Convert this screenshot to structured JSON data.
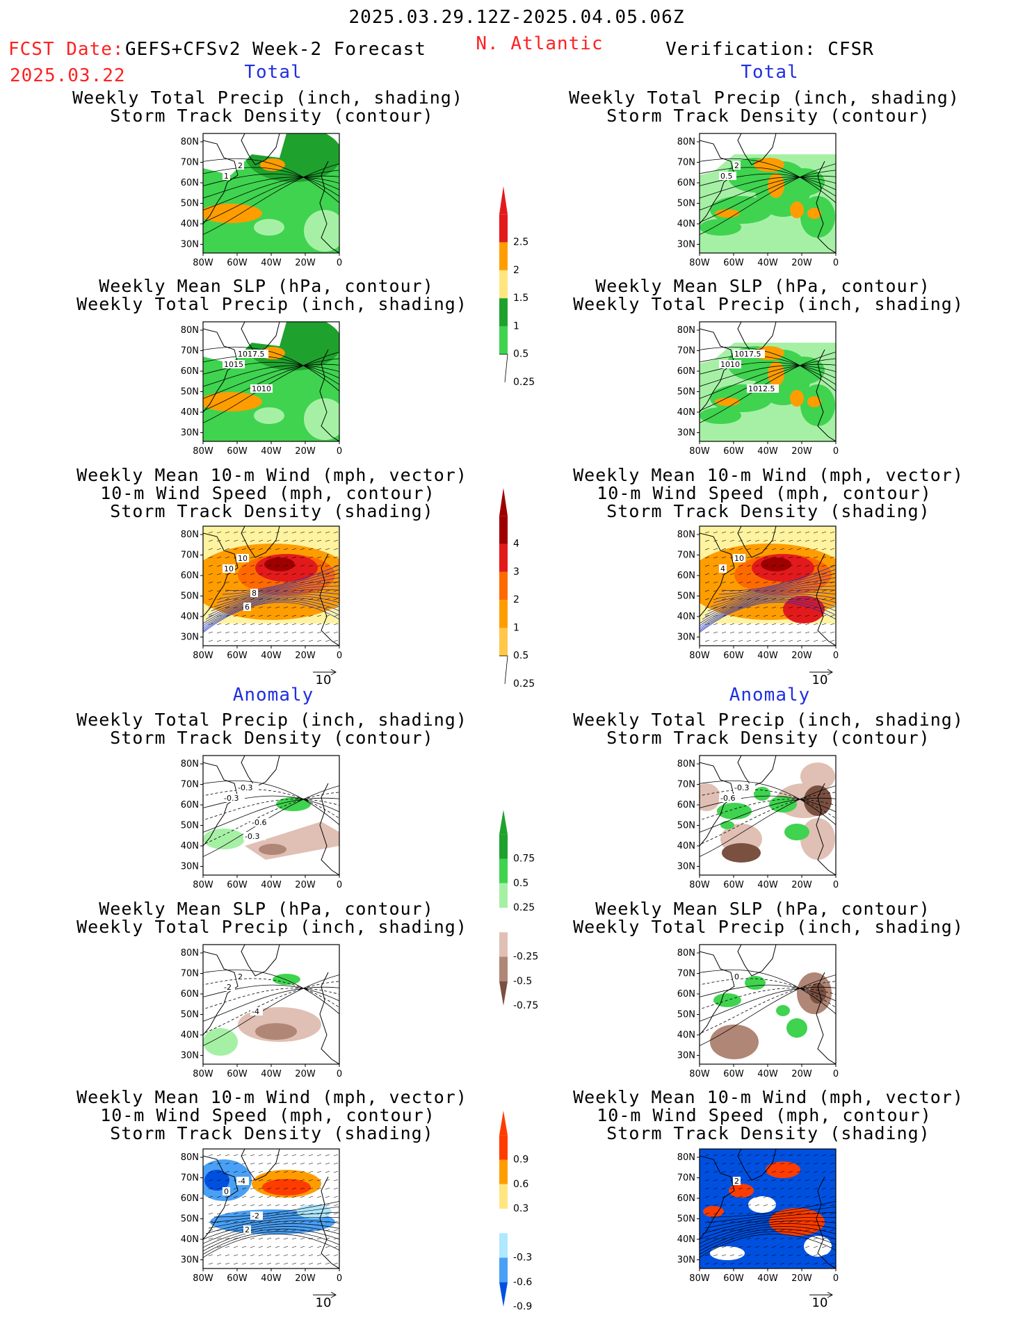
{
  "header": {
    "date_range": "2025.03.29.12Z-2025.04.05.06Z",
    "fcst_label": "FCST Date:",
    "fcst_model": "GEFS+CFSv2 Week-2 Forecast",
    "fcst_date": "2025.03.22",
    "region": "N. Atlantic",
    "verification": "Verification: CFSR"
  },
  "sections": {
    "total": "Total",
    "anomaly": "Anomaly"
  },
  "titles": {
    "precip_storm": [
      "Weekly Total Precip (inch, shading)",
      "Storm Track Density (contour)"
    ],
    "slp_precip": [
      "Weekly Mean SLP (hPa, contour)",
      "Weekly Total Precip (inch, shading)"
    ],
    "wind_storm": [
      "Weekly Mean 10-m Wind (mph, vector)",
      "10-m Wind Speed (mph, contour)",
      "Storm Track Density (shading)"
    ]
  },
  "axes": {
    "lat_ticks": [
      "80N",
      "70N",
      "60N",
      "50N",
      "40N",
      "30N"
    ],
    "lon_ticks": [
      "80W",
      "60W",
      "40W",
      "20W",
      "0"
    ]
  },
  "vector_ref": "10",
  "colorbars": {
    "precip_total": {
      "labels": [
        "2.5",
        "2",
        "1.5",
        "1",
        "0.5",
        "0.25"
      ],
      "colors": [
        "#e31a1c",
        "#ff9d00",
        "#ffe680",
        "#1fa12e",
        "#3fd34f",
        "#a6f0a6"
      ]
    },
    "storm_total": {
      "labels": [
        "4",
        "3",
        "2",
        "1",
        "0.5",
        "0.25"
      ],
      "colors": [
        "#9e0000",
        "#e31a1c",
        "#ff6a00",
        "#ff9d00",
        "#ffc84a",
        "#fff3a0"
      ]
    },
    "precip_anom": {
      "labels": [
        "0.75",
        "0.5",
        "0.25",
        "-0.25",
        "-0.5",
        "-0.75"
      ],
      "colors": [
        "#1fa12e",
        "#3fd34f",
        "#a6f0a6",
        "#ffffff",
        "#e0c0b4",
        "#b08676",
        "#7a5040"
      ]
    },
    "storm_anom": {
      "labels": [
        "0.9",
        "0.6",
        "0.3",
        "-0.3",
        "-0.6",
        "-0.9"
      ],
      "colors": [
        "#ff3c00",
        "#ff9d00",
        "#ffe680",
        "#ffffff",
        "#b0e8ff",
        "#4aa0f5",
        "#0050e0"
      ]
    }
  },
  "panels": {
    "fc_precip_storm": {
      "labels": [
        "2",
        "1"
      ],
      "colors": {
        "base": "#3fd34f"
      }
    },
    "fc_slp_precip": {
      "labels": [
        "1017.5",
        "1015",
        "1010"
      ]
    },
    "fc_wind_storm": {
      "labels": [
        "10",
        "10",
        "8",
        "6"
      ]
    },
    "vf_precip_storm": {
      "labels": [
        "2",
        "0.5"
      ]
    },
    "vf_slp_precip": {
      "labels": [
        "1017.5",
        "1010",
        "1012.5"
      ]
    },
    "vf_wind_storm": {
      "labels": [
        "10",
        "4"
      ]
    },
    "fa_precip_storm": {
      "labels": [
        "-0.3",
        "-0.3",
        "-0.6",
        "-0.3"
      ]
    },
    "fa_slp_precip": {
      "labels": [
        "2",
        "-2",
        "-4"
      ]
    },
    "fa_wind_storm": {
      "labels": [
        "-4",
        "0",
        "-2",
        "2"
      ]
    },
    "va_precip_storm": {
      "labels": [
        "-0.3",
        "-0.6"
      ]
    },
    "va_slp_precip": {
      "labels": [
        "0"
      ]
    },
    "va_wind_storm": {
      "labels": [
        "2"
      ]
    }
  }
}
